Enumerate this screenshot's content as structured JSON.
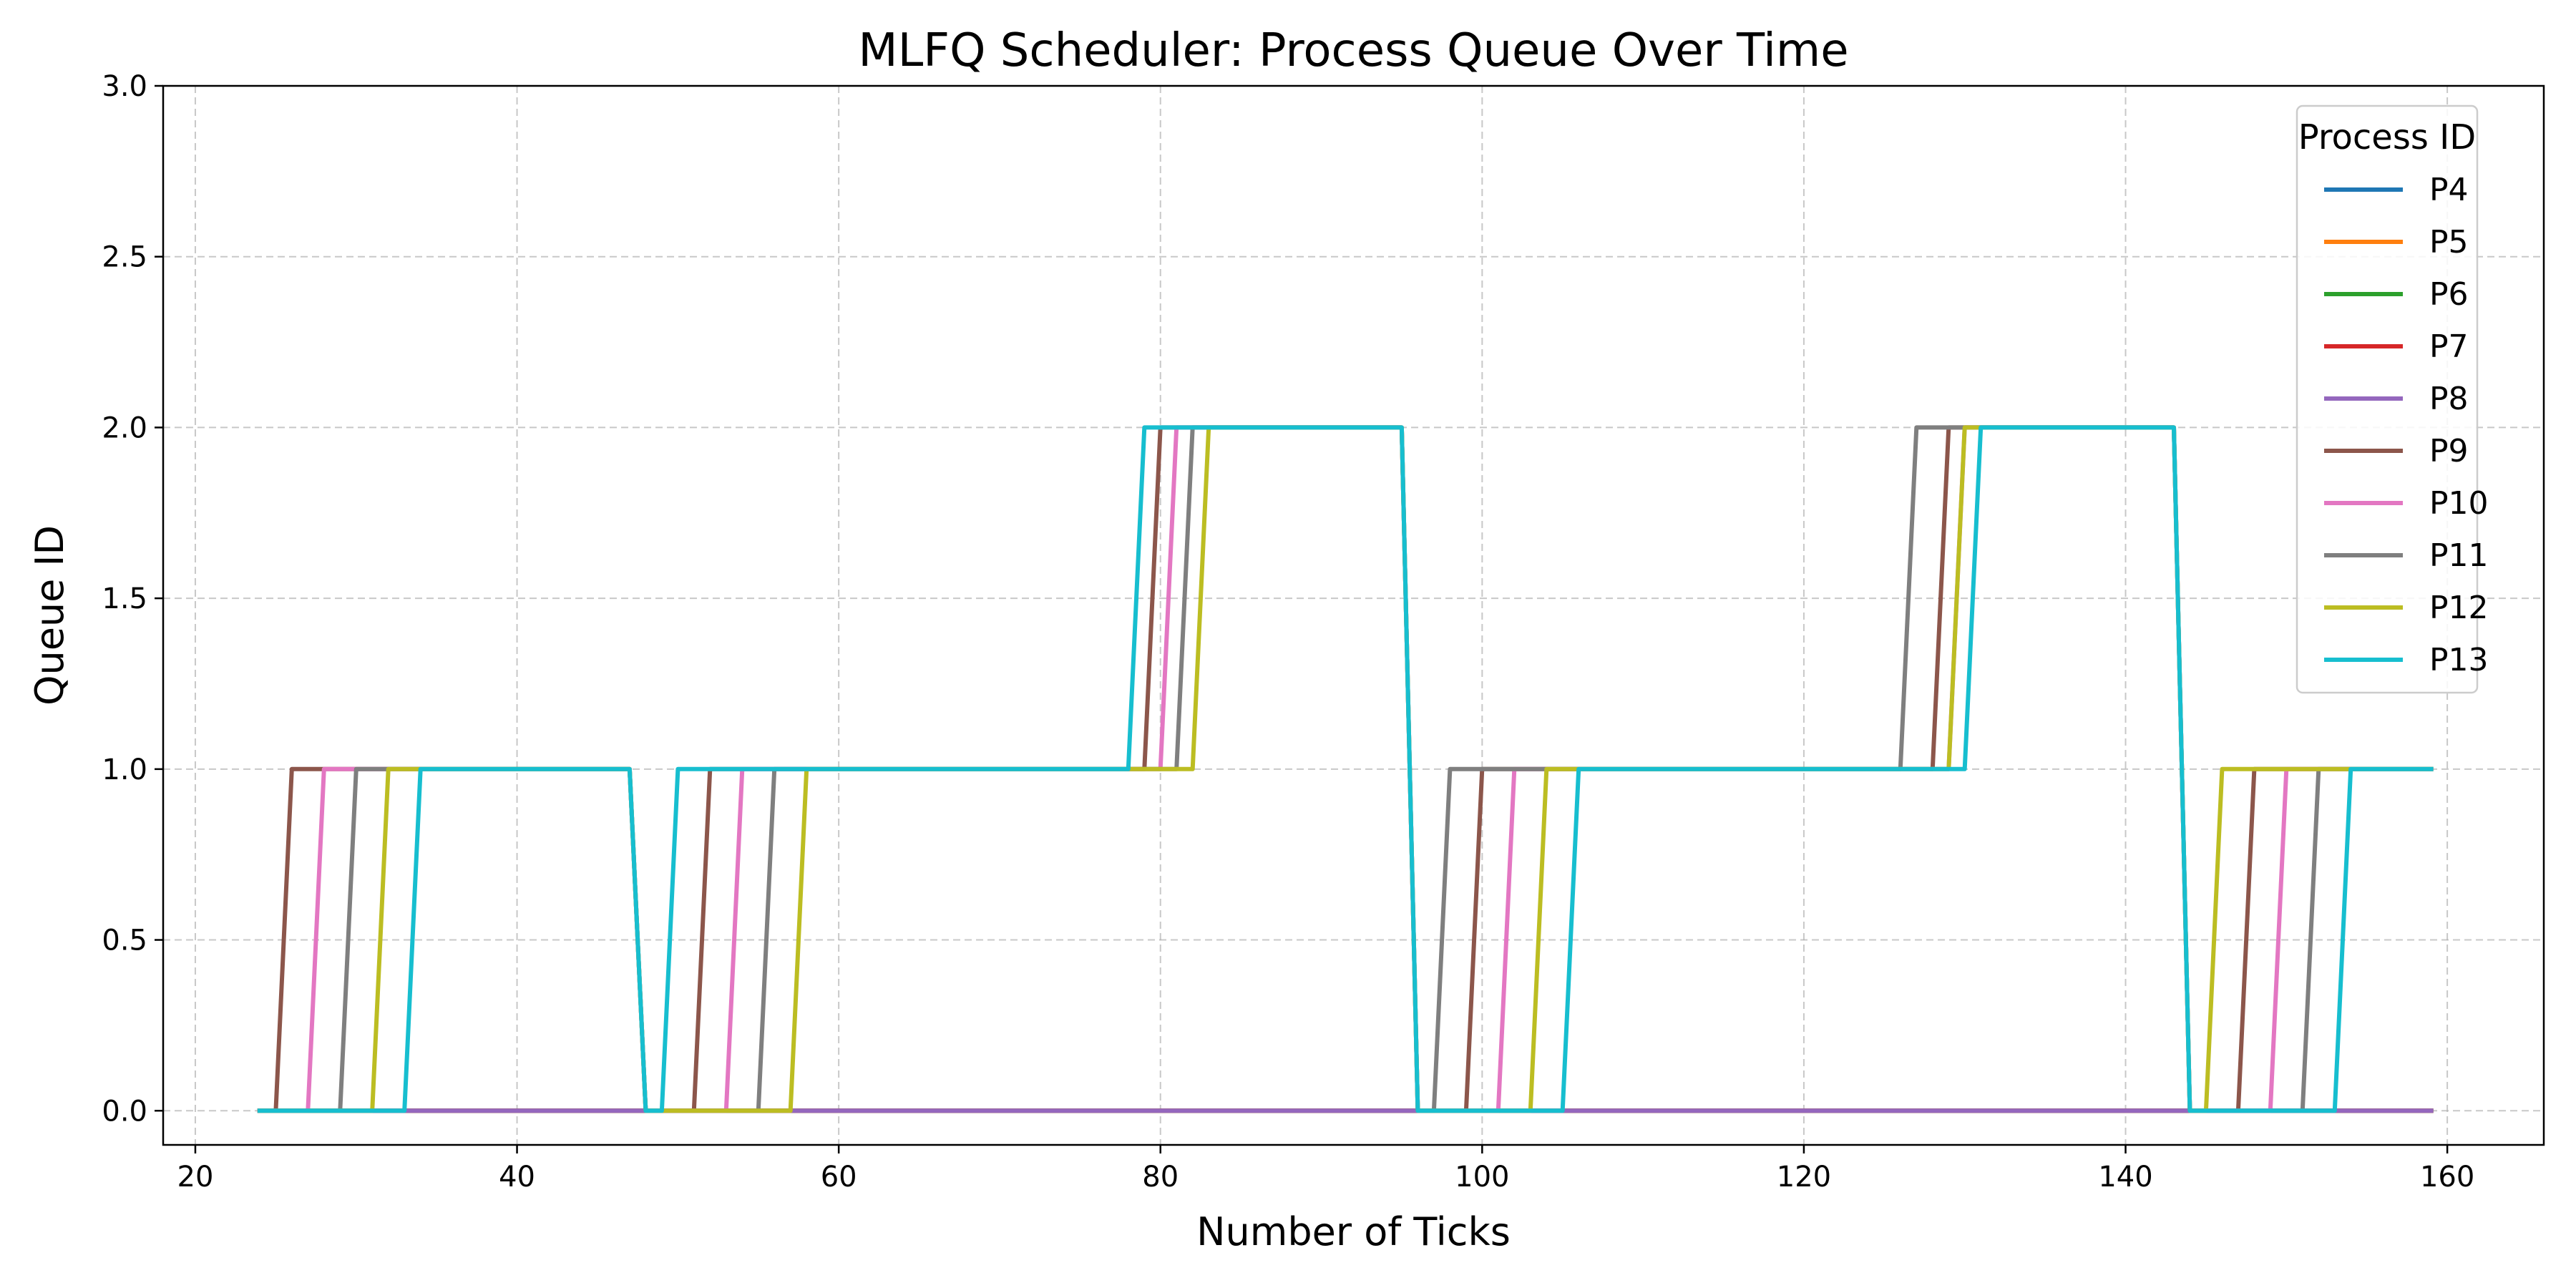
{
  "chart_data": {
    "type": "line",
    "title": "MLFQ Scheduler: Process Queue Over Time",
    "xlabel": "Number of Ticks",
    "ylabel": "Queue ID",
    "xlim": [
      18,
      166
    ],
    "ylim": [
      -0.1,
      3.0
    ],
    "xticks": [
      20,
      40,
      60,
      80,
      100,
      120,
      140,
      160
    ],
    "yticks": [
      0.0,
      0.5,
      1.0,
      1.5,
      2.0,
      2.5,
      3.0
    ],
    "xtick_labels": [
      "20",
      "40",
      "60",
      "80",
      "100",
      "120",
      "140",
      "160"
    ],
    "ytick_labels": [
      "0.0",
      "0.5",
      "1.0",
      "1.5",
      "2.0",
      "2.5",
      "3.0"
    ],
    "grid": true,
    "legend_title": "Process ID",
    "legend_position": "top-right",
    "series": [
      {
        "name": "P4",
        "color": "#1f77b4",
        "x": [
          24,
          159
        ],
        "y": [
          0,
          0
        ]
      },
      {
        "name": "P5",
        "color": "#ff7f0e",
        "x": [
          24,
          159
        ],
        "y": [
          0,
          0
        ]
      },
      {
        "name": "P6",
        "color": "#2ca02c",
        "x": [
          24,
          159
        ],
        "y": [
          0,
          0
        ]
      },
      {
        "name": "P7",
        "color": "#d62728",
        "x": [
          24,
          159
        ],
        "y": [
          0,
          0
        ]
      },
      {
        "name": "P8",
        "color": "#9467bd",
        "x": [
          24,
          159
        ],
        "y": [
          0,
          0
        ]
      },
      {
        "name": "P9",
        "color": "#8c564b",
        "x": [
          24,
          25,
          26,
          47,
          48,
          51,
          52,
          79,
          80,
          95,
          96,
          99,
          100,
          128,
          129,
          143,
          144,
          147,
          148,
          159
        ],
        "y": [
          0,
          0,
          1,
          1,
          0,
          0,
          1,
          1,
          2,
          2,
          0,
          0,
          1,
          1,
          2,
          2,
          0,
          0,
          1,
          1
        ]
      },
      {
        "name": "P10",
        "color": "#e377c2",
        "x": [
          24,
          27,
          28,
          47,
          48,
          53,
          54,
          80,
          81,
          95,
          96,
          101,
          102,
          129,
          130,
          143,
          144,
          149,
          150,
          159
        ],
        "y": [
          0,
          0,
          1,
          1,
          0,
          0,
          1,
          1,
          2,
          2,
          0,
          0,
          1,
          1,
          2,
          2,
          0,
          0,
          1,
          1
        ]
      },
      {
        "name": "P11",
        "color": "#7f7f7f",
        "x": [
          24,
          29,
          30,
          47,
          48,
          55,
          56,
          81,
          82,
          95,
          96,
          97,
          98,
          126,
          127,
          143,
          144,
          151,
          152,
          159
        ],
        "y": [
          0,
          0,
          1,
          1,
          0,
          0,
          1,
          1,
          2,
          2,
          0,
          0,
          1,
          1,
          2,
          2,
          0,
          0,
          1,
          1
        ]
      },
      {
        "name": "P12",
        "color": "#bcbd22",
        "x": [
          24,
          31,
          32,
          47,
          48,
          57,
          58,
          82,
          83,
          95,
          96,
          103,
          104,
          129,
          130,
          143,
          144,
          145,
          146,
          159
        ],
        "y": [
          0,
          0,
          1,
          1,
          0,
          0,
          1,
          1,
          2,
          2,
          0,
          0,
          1,
          1,
          2,
          2,
          0,
          0,
          1,
          1
        ]
      },
      {
        "name": "P13",
        "color": "#17becf",
        "x": [
          24,
          33,
          34,
          47,
          48,
          49,
          50,
          78,
          79,
          95,
          96,
          105,
          106,
          130,
          131,
          143,
          144,
          153,
          154,
          159
        ],
        "y": [
          0,
          0,
          1,
          1,
          0,
          0,
          1,
          1,
          2,
          2,
          0,
          0,
          1,
          1,
          2,
          2,
          0,
          0,
          1,
          1
        ]
      }
    ]
  }
}
